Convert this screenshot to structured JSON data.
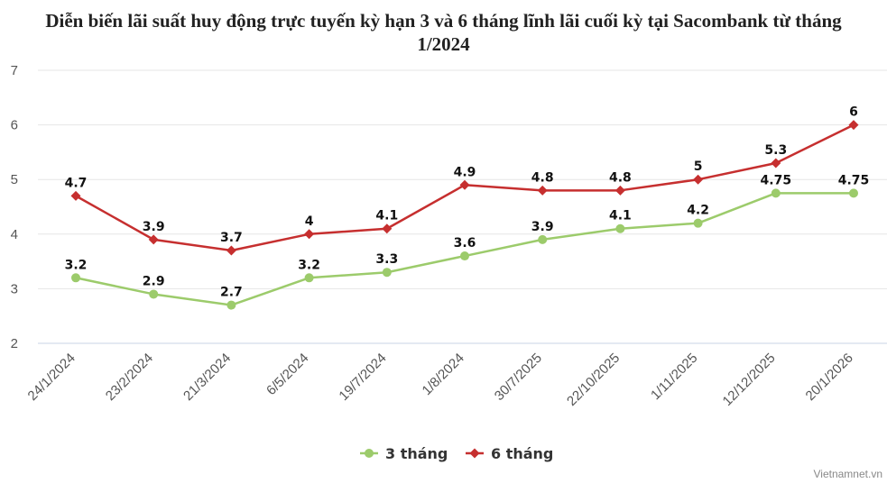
{
  "chart_data": {
    "type": "line",
    "title_lines": [
      "Diễn biến lãi suất huy động trực tuyến kỳ hạn 3 và 6 tháng lĩnh lãi cuối kỳ tại Sacombank từ tháng",
      "1/2024"
    ],
    "categories": [
      "24/1/2024",
      "23/2/2024",
      "21/3/2024",
      "6/5/2024",
      "19/7/2024",
      "1/8/2024",
      "30/7/2025",
      "22/10/2025",
      "1/11/2025",
      "12/12/2025",
      "20/1/2026"
    ],
    "ylim": [
      2,
      7
    ],
    "yticks": [
      2,
      3,
      4,
      5,
      6,
      7
    ],
    "grid": true,
    "legend_position": "bottom",
    "series": [
      {
        "name": "3 tháng",
        "color": "#9ccb6b",
        "marker": "circle",
        "values": [
          3.2,
          2.9,
          2.7,
          3.2,
          3.3,
          3.6,
          3.9,
          4.1,
          4.2,
          4.75,
          4.75
        ]
      },
      {
        "name": "6 tháng",
        "color": "#c62f2f",
        "marker": "diamond",
        "values": [
          4.7,
          3.9,
          3.7,
          4,
          4.1,
          4.9,
          4.8,
          4.8,
          5,
          5.3,
          6
        ]
      }
    ]
  },
  "credit": "Vietnamnet.vn"
}
